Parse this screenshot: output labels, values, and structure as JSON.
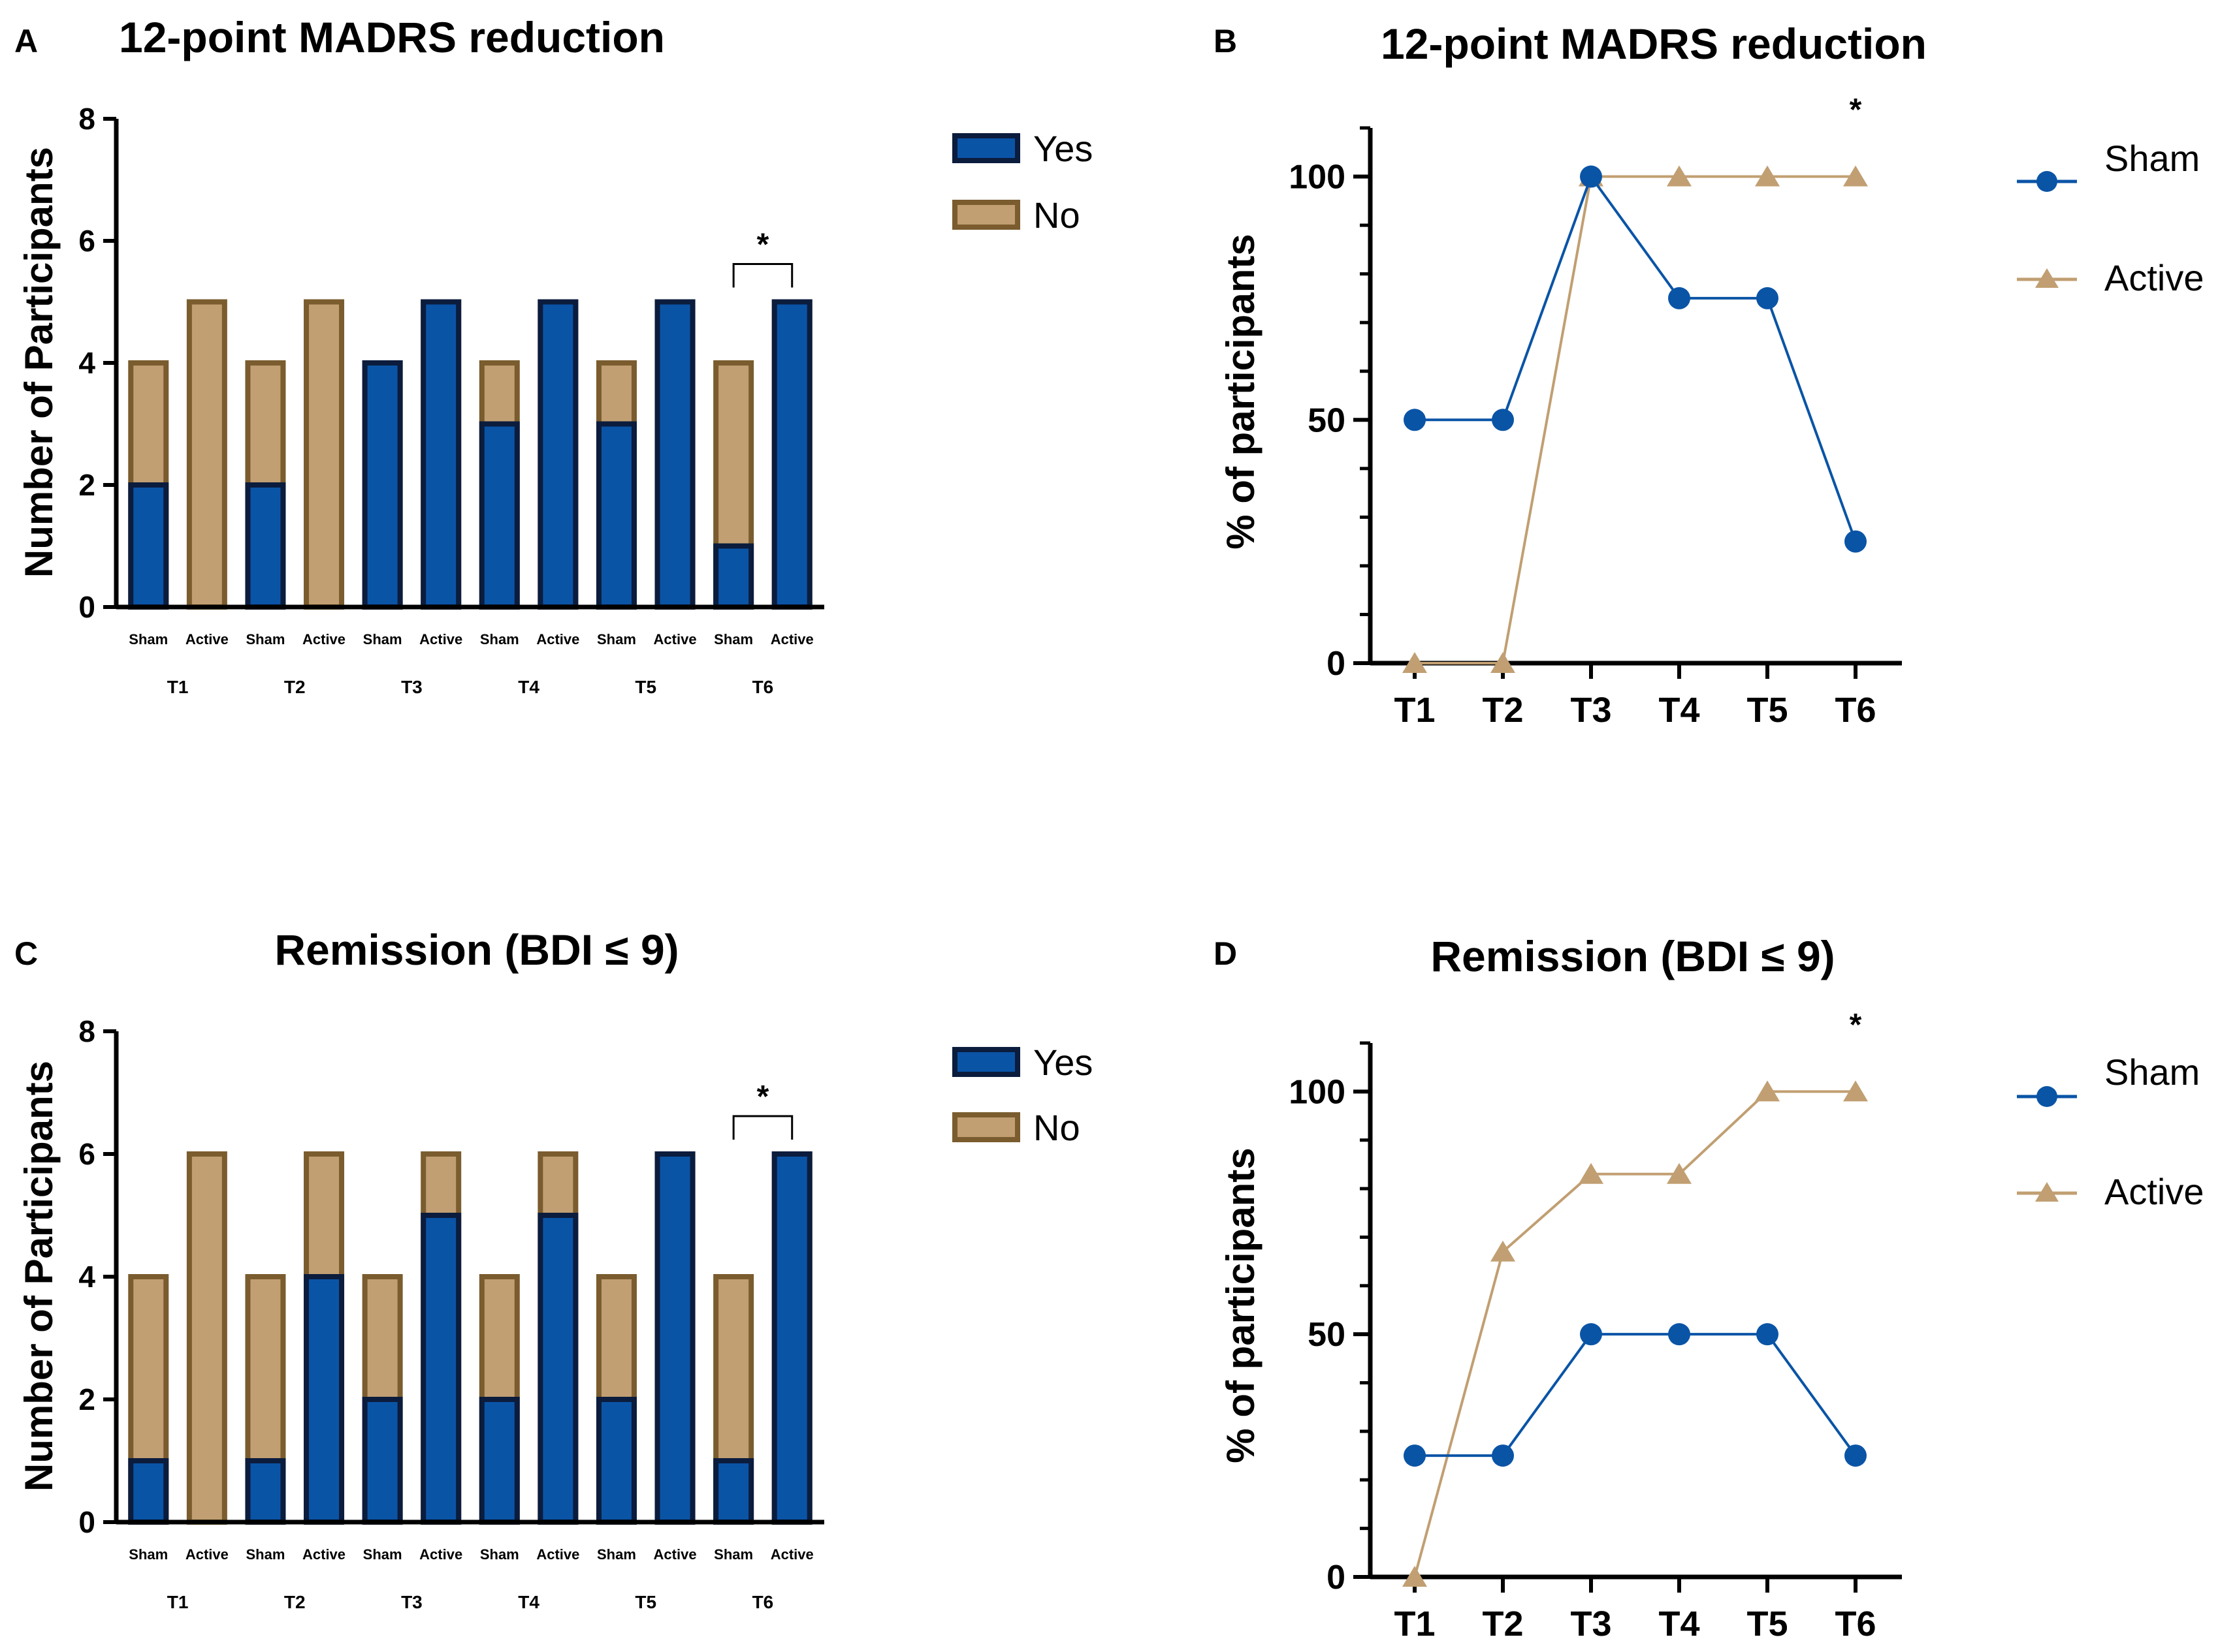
{
  "colors": {
    "yes_fill": "#0a54a6",
    "yes_edge": "#0b1c3d",
    "no_fill": "#c19f72",
    "no_edge": "#7a5c2e",
    "sham_line": "#0a54a6",
    "active_line": "#c19f72"
  },
  "panels": {
    "A": {
      "letter": "A",
      "title": "12-point MADRS reduction",
      "ylabel": "Number of Participants",
      "significance": "*"
    },
    "B": {
      "letter": "B",
      "title": "12-point MADRS reduction",
      "ylabel": "% of participants",
      "significance": "*"
    },
    "C": {
      "letter": "C",
      "title": "Remission (BDI ≤ 9)",
      "ylabel": "Number of Participants",
      "significance": "*"
    },
    "D": {
      "letter": "D",
      "title": "Remission (BDI ≤ 9)",
      "ylabel": "% of participants",
      "significance": "*"
    }
  },
  "bar_legend": {
    "yes": "Yes",
    "no": "No"
  },
  "line_legend": {
    "sham": "Sham",
    "active": "Active"
  },
  "chart_data": [
    {
      "panel": "A",
      "type": "bar",
      "stacked": true,
      "title": "12-point MADRS reduction",
      "xlabel": "",
      "ylabel": "Number of Participants",
      "ylim": [
        0,
        8
      ],
      "yticks": [
        0,
        2,
        4,
        6,
        8
      ],
      "groups": [
        "T1",
        "T2",
        "T3",
        "T4",
        "T5",
        "T6"
      ],
      "categories": [
        "Sham",
        "Active"
      ],
      "series": [
        {
          "name": "Yes",
          "values": [
            [
              2,
              0
            ],
            [
              2,
              0
            ],
            [
              4,
              5
            ],
            [
              3,
              5
            ],
            [
              3,
              5
            ],
            [
              1,
              5
            ]
          ]
        },
        {
          "name": "No",
          "values": [
            [
              2,
              5
            ],
            [
              2,
              5
            ],
            [
              0,
              0
            ],
            [
              1,
              0
            ],
            [
              1,
              0
            ],
            [
              3,
              0
            ]
          ]
        }
      ],
      "legend": [
        "Yes",
        "No"
      ],
      "annotations": [
        {
          "text": "*",
          "group": "T6",
          "between": [
            "Sham",
            "Active"
          ]
        }
      ]
    },
    {
      "panel": "B",
      "type": "line",
      "title": "12-point MADRS reduction",
      "xlabel": "",
      "ylabel": "% of participants",
      "ylim": [
        0,
        110
      ],
      "yticks": [
        0,
        50,
        100
      ],
      "x": [
        "T1",
        "T2",
        "T3",
        "T4",
        "T5",
        "T6"
      ],
      "series": [
        {
          "name": "Sham",
          "marker": "circle",
          "values": [
            50,
            50,
            100,
            75,
            75,
            25
          ]
        },
        {
          "name": "Active",
          "marker": "triangle",
          "values": [
            0,
            0,
            100,
            100,
            100,
            100
          ]
        }
      ],
      "legend": [
        "Sham",
        "Active"
      ],
      "annotations": [
        {
          "text": "*",
          "x": "T6"
        }
      ]
    },
    {
      "panel": "C",
      "type": "bar",
      "stacked": true,
      "title": "Remission (BDI ≤ 9)",
      "xlabel": "",
      "ylabel": "Number of Participants",
      "ylim": [
        0,
        8
      ],
      "yticks": [
        0,
        2,
        4,
        6,
        8
      ],
      "groups": [
        "T1",
        "T2",
        "T3",
        "T4",
        "T5",
        "T6"
      ],
      "categories": [
        "Sham",
        "Active"
      ],
      "series": [
        {
          "name": "Yes",
          "values": [
            [
              1,
              0
            ],
            [
              1,
              4
            ],
            [
              2,
              5
            ],
            [
              2,
              5
            ],
            [
              2,
              6
            ],
            [
              1,
              6
            ]
          ]
        },
        {
          "name": "No",
          "values": [
            [
              3,
              6
            ],
            [
              3,
              2
            ],
            [
              2,
              1
            ],
            [
              2,
              1
            ],
            [
              2,
              0
            ],
            [
              3,
              0
            ]
          ]
        }
      ],
      "legend": [
        "Yes",
        "No"
      ],
      "annotations": [
        {
          "text": "*",
          "group": "T6",
          "between": [
            "Sham",
            "Active"
          ]
        }
      ]
    },
    {
      "panel": "D",
      "type": "line",
      "title": "Remission (BDI ≤ 9)",
      "xlabel": "",
      "ylabel": "% of participants",
      "ylim": [
        0,
        110
      ],
      "yticks": [
        0,
        50,
        100
      ],
      "x": [
        "T1",
        "T2",
        "T3",
        "T4",
        "T5",
        "T6"
      ],
      "series": [
        {
          "name": "Sham",
          "marker": "circle",
          "values": [
            25,
            25,
            50,
            50,
            50,
            25
          ]
        },
        {
          "name": "Active",
          "marker": "triangle",
          "values": [
            0,
            67,
            83,
            83,
            100,
            100
          ]
        }
      ],
      "legend": [
        "Sham",
        "Active"
      ],
      "annotations": [
        {
          "text": "*",
          "x": "T6"
        }
      ]
    }
  ]
}
